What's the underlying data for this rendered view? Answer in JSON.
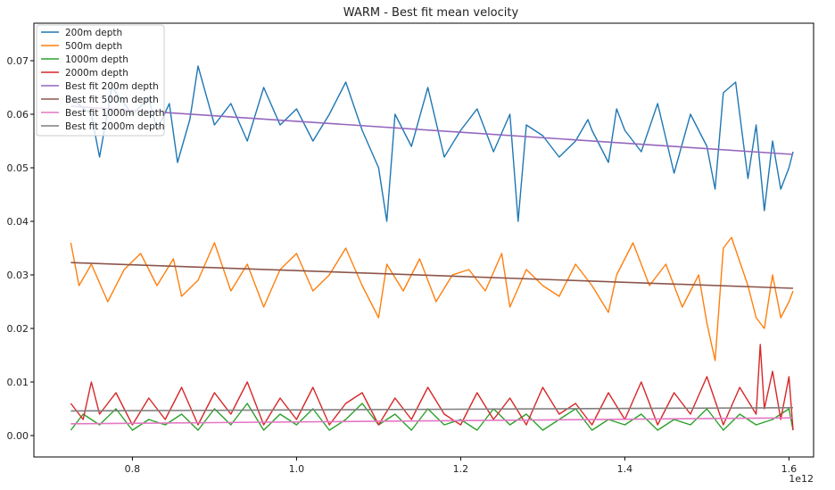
{
  "chart_data": {
    "type": "line",
    "title": "WARM - Best fit mean velocity",
    "xlabel": "",
    "ylabel": "",
    "x_offset_label": "1e12",
    "xlim": [
      0.68,
      1.63
    ],
    "ylim": [
      -0.004,
      0.077
    ],
    "x_ticks": [
      0.8,
      1.0,
      1.2,
      1.4,
      1.6
    ],
    "x_tick_labels": [
      "0.8",
      "1.0",
      "1.2",
      "1.4",
      "1.6"
    ],
    "y_ticks": [
      0.0,
      0.01,
      0.02,
      0.03,
      0.04,
      0.05,
      0.06,
      0.07
    ],
    "y_tick_labels": [
      "0.00",
      "0.01",
      "0.02",
      "0.03",
      "0.04",
      "0.05",
      "0.06",
      "0.07"
    ],
    "grid": false,
    "legend_position": "top-left",
    "series": [
      {
        "name": "200m depth",
        "color": "#1f77b4",
        "kind": "data",
        "x": [
          0.725,
          0.75,
          0.76,
          0.775,
          0.8,
          0.82,
          0.83,
          0.845,
          0.855,
          0.87,
          0.88,
          0.9,
          0.92,
          0.94,
          0.96,
          0.98,
          1.0,
          1.02,
          1.04,
          1.06,
          1.08,
          1.1,
          1.11,
          1.12,
          1.14,
          1.16,
          1.18,
          1.2,
          1.22,
          1.24,
          1.26,
          1.27,
          1.28,
          1.3,
          1.32,
          1.34,
          1.355,
          1.36,
          1.38,
          1.39,
          1.4,
          1.42,
          1.44,
          1.46,
          1.48,
          1.5,
          1.51,
          1.52,
          1.535,
          1.55,
          1.56,
          1.57,
          1.58,
          1.59,
          1.6,
          1.605
        ],
        "y": [
          0.063,
          0.06,
          0.052,
          0.065,
          0.06,
          0.063,
          0.057,
          0.062,
          0.051,
          0.059,
          0.069,
          0.058,
          0.062,
          0.055,
          0.065,
          0.058,
          0.061,
          0.055,
          0.06,
          0.066,
          0.057,
          0.05,
          0.04,
          0.06,
          0.054,
          0.065,
          0.052,
          0.057,
          0.061,
          0.053,
          0.06,
          0.04,
          0.058,
          0.056,
          0.052,
          0.055,
          0.059,
          0.057,
          0.051,
          0.061,
          0.057,
          0.053,
          0.062,
          0.049,
          0.06,
          0.054,
          0.046,
          0.064,
          0.066,
          0.048,
          0.058,
          0.042,
          0.055,
          0.046,
          0.05,
          0.053
        ]
      },
      {
        "name": "500m depth",
        "color": "#ff7f0e",
        "kind": "data",
        "x": [
          0.725,
          0.735,
          0.75,
          0.77,
          0.79,
          0.81,
          0.83,
          0.85,
          0.86,
          0.88,
          0.9,
          0.92,
          0.94,
          0.96,
          0.98,
          1.0,
          1.02,
          1.04,
          1.06,
          1.08,
          1.1,
          1.11,
          1.13,
          1.15,
          1.17,
          1.19,
          1.21,
          1.23,
          1.25,
          1.26,
          1.28,
          1.3,
          1.32,
          1.34,
          1.36,
          1.38,
          1.39,
          1.41,
          1.43,
          1.45,
          1.47,
          1.49,
          1.5,
          1.51,
          1.52,
          1.53,
          1.55,
          1.56,
          1.57,
          1.58,
          1.59,
          1.6,
          1.605
        ],
        "y": [
          0.036,
          0.028,
          0.032,
          0.025,
          0.031,
          0.034,
          0.028,
          0.033,
          0.026,
          0.029,
          0.036,
          0.027,
          0.032,
          0.024,
          0.031,
          0.034,
          0.027,
          0.03,
          0.035,
          0.028,
          0.022,
          0.032,
          0.027,
          0.033,
          0.025,
          0.03,
          0.031,
          0.027,
          0.034,
          0.024,
          0.031,
          0.028,
          0.026,
          0.032,
          0.028,
          0.023,
          0.03,
          0.036,
          0.028,
          0.032,
          0.024,
          0.03,
          0.021,
          0.014,
          0.035,
          0.037,
          0.028,
          0.022,
          0.02,
          0.03,
          0.022,
          0.025,
          0.027
        ]
      },
      {
        "name": "1000m depth",
        "color": "#2ca02c",
        "kind": "data",
        "x": [
          0.725,
          0.74,
          0.76,
          0.78,
          0.8,
          0.82,
          0.84,
          0.86,
          0.88,
          0.9,
          0.92,
          0.94,
          0.96,
          0.98,
          1.0,
          1.02,
          1.04,
          1.06,
          1.08,
          1.1,
          1.12,
          1.14,
          1.16,
          1.18,
          1.2,
          1.22,
          1.24,
          1.26,
          1.28,
          1.3,
          1.32,
          1.34,
          1.36,
          1.38,
          1.4,
          1.42,
          1.44,
          1.46,
          1.48,
          1.5,
          1.52,
          1.54,
          1.56,
          1.58,
          1.6,
          1.605
        ],
        "y": [
          0.001,
          0.004,
          0.002,
          0.005,
          0.001,
          0.003,
          0.002,
          0.004,
          0.001,
          0.005,
          0.002,
          0.006,
          0.001,
          0.004,
          0.002,
          0.005,
          0.001,
          0.003,
          0.006,
          0.002,
          0.004,
          0.001,
          0.005,
          0.002,
          0.003,
          0.001,
          0.005,
          0.002,
          0.004,
          0.001,
          0.003,
          0.005,
          0.001,
          0.003,
          0.002,
          0.004,
          0.001,
          0.003,
          0.002,
          0.005,
          0.001,
          0.004,
          0.002,
          0.003,
          0.005,
          0.001
        ]
      },
      {
        "name": "2000m depth",
        "color": "#d62728",
        "kind": "data",
        "x": [
          0.725,
          0.74,
          0.75,
          0.76,
          0.78,
          0.8,
          0.82,
          0.84,
          0.86,
          0.88,
          0.9,
          0.92,
          0.94,
          0.96,
          0.98,
          1.0,
          1.02,
          1.04,
          1.06,
          1.08,
          1.1,
          1.12,
          1.14,
          1.16,
          1.18,
          1.2,
          1.22,
          1.24,
          1.26,
          1.28,
          1.3,
          1.32,
          1.34,
          1.36,
          1.38,
          1.4,
          1.42,
          1.44,
          1.46,
          1.48,
          1.5,
          1.52,
          1.54,
          1.56,
          1.565,
          1.57,
          1.58,
          1.59,
          1.6,
          1.605
        ],
        "y": [
          0.006,
          0.003,
          0.01,
          0.004,
          0.008,
          0.002,
          0.007,
          0.003,
          0.009,
          0.002,
          0.008,
          0.004,
          0.01,
          0.002,
          0.007,
          0.003,
          0.009,
          0.002,
          0.006,
          0.008,
          0.002,
          0.007,
          0.003,
          0.009,
          0.004,
          0.002,
          0.008,
          0.003,
          0.007,
          0.002,
          0.009,
          0.004,
          0.006,
          0.002,
          0.008,
          0.003,
          0.01,
          0.002,
          0.008,
          0.004,
          0.011,
          0.002,
          0.009,
          0.004,
          0.017,
          0.005,
          0.012,
          0.003,
          0.011,
          0.001
        ]
      },
      {
        "name": "Best fit 200m depth",
        "color": "#9467bd",
        "kind": "fit",
        "x": [
          0.725,
          1.605
        ],
        "y": [
          0.0615,
          0.0525
        ]
      },
      {
        "name": "Best fit 500m depth",
        "color": "#8c564b",
        "kind": "fit",
        "x": [
          0.725,
          1.605
        ],
        "y": [
          0.0323,
          0.0275
        ]
      },
      {
        "name": "Best fit 1000m depth",
        "color": "#e377c2",
        "kind": "fit",
        "x": [
          0.725,
          1.605
        ],
        "y": [
          0.0022,
          0.0033
        ]
      },
      {
        "name": "Best fit 2000m depth",
        "color": "#7f7f7f",
        "kind": "fit",
        "x": [
          0.725,
          1.605
        ],
        "y": [
          0.0046,
          0.0052
        ]
      }
    ]
  }
}
